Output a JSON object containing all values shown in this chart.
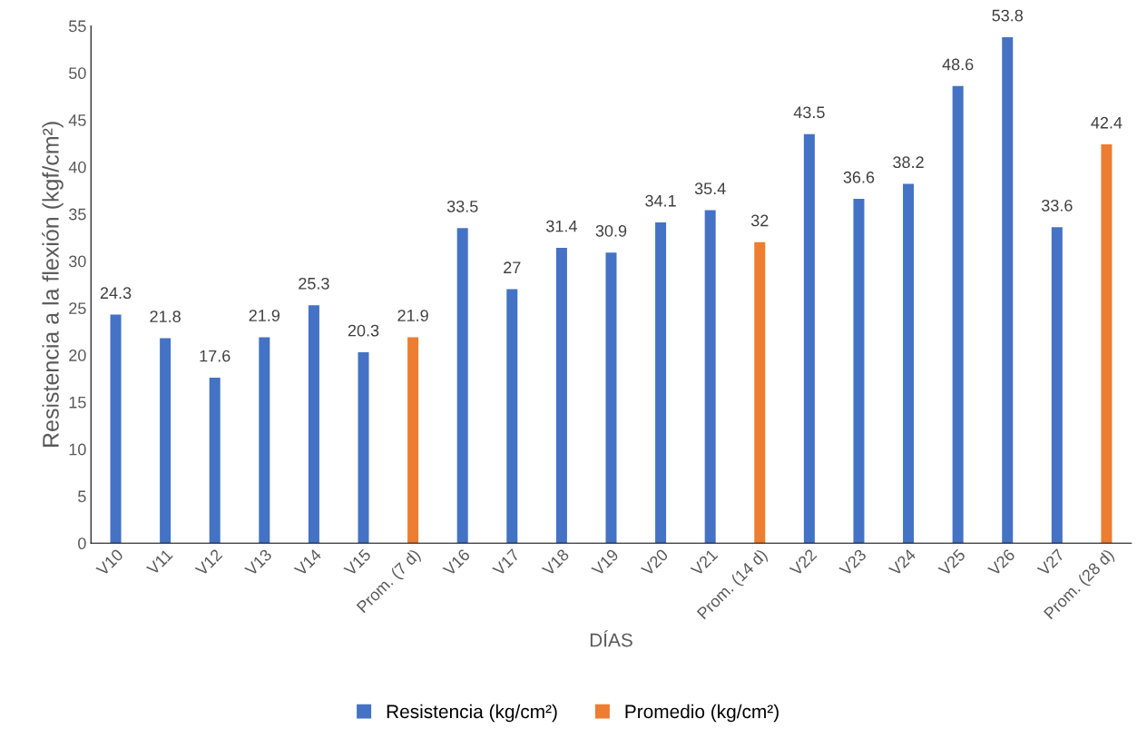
{
  "chart_data": {
    "type": "bar",
    "xlabel": "DÍAS",
    "ylabel": "Resistencia a la flexión (kgf/cm²)",
    "categories": [
      "V10",
      "V11",
      "V12",
      "V13",
      "V14",
      "V15",
      "Prom. (7 d)",
      "V16",
      "V17",
      "V18",
      "V19",
      "V20",
      "V21",
      "Prom. (14 d)",
      "V22",
      "V23",
      "V24",
      "V25",
      "V26",
      "V27",
      "Prom. (28 d)"
    ],
    "series": [
      {
        "name": "Resistencia (kg/cm²)",
        "color": "#4472c4",
        "values": [
          24.3,
          21.8,
          17.6,
          21.9,
          25.3,
          20.3,
          null,
          33.5,
          27,
          31.4,
          30.9,
          34.1,
          35.4,
          null,
          43.5,
          36.6,
          38.2,
          48.6,
          53.8,
          33.6,
          null
        ]
      },
      {
        "name": "Promedio (kg/cm²)",
        "color": "#ed7d31",
        "values": [
          null,
          null,
          null,
          null,
          null,
          null,
          21.9,
          null,
          null,
          null,
          null,
          null,
          null,
          32,
          null,
          null,
          null,
          null,
          null,
          null,
          42.4
        ]
      }
    ],
    "ylim": [
      0,
      55
    ],
    "yticks": [
      0,
      5,
      10,
      15,
      20,
      25,
      30,
      35,
      40,
      45,
      50,
      55
    ],
    "data_labels": true,
    "grid": false,
    "legend": "bottom"
  }
}
